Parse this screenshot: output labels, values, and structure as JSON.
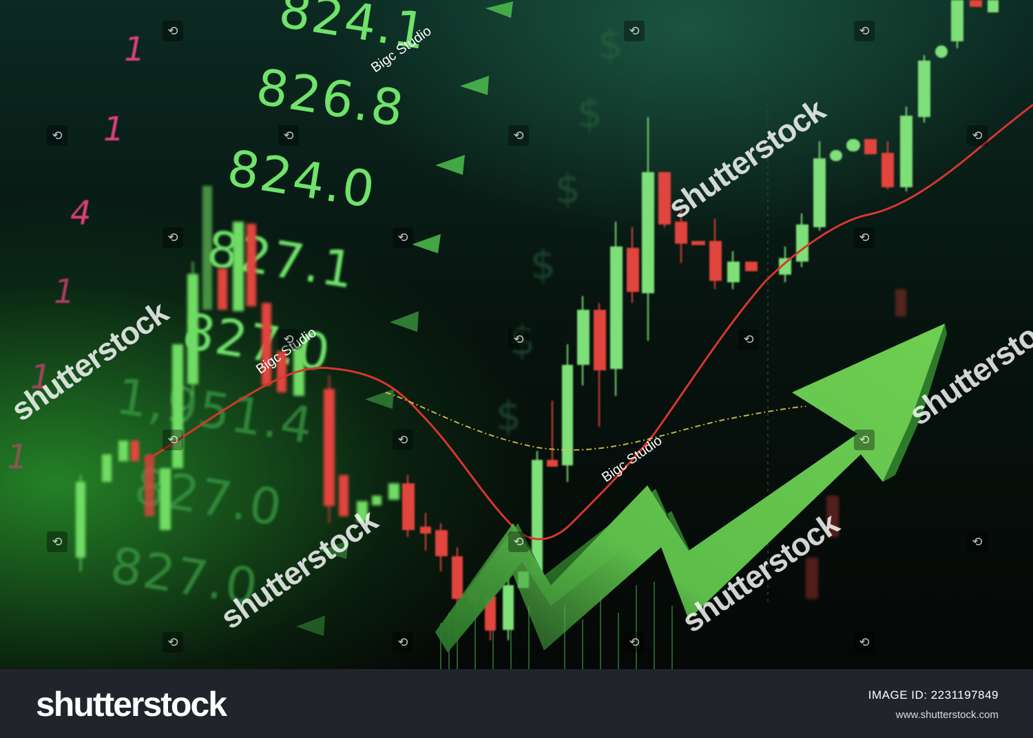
{
  "image": {
    "ticker_values": [
      "824.1",
      "826.8",
      "824.0",
      "827.1",
      "827.0",
      "1,951.4",
      "827.0",
      "827.0"
    ],
    "red_digits": [
      "1",
      "1",
      "4",
      "1",
      "1",
      "1"
    ],
    "dollar_sign": "$",
    "stock_watermark": "shutterstock",
    "credit": "Bigc Studio",
    "watermark_icon": "shutterstock-glyph-icon",
    "colors": {
      "up_candle": "#7fe07a",
      "down_candle": "#e2453d",
      "arrow": "#5fc24a",
      "trend_line": "#d8362e"
    }
  },
  "footer": {
    "logo": "shutterstock",
    "image_id": "IMAGE ID: 2231197849",
    "url": "www.shutterstock.com"
  }
}
